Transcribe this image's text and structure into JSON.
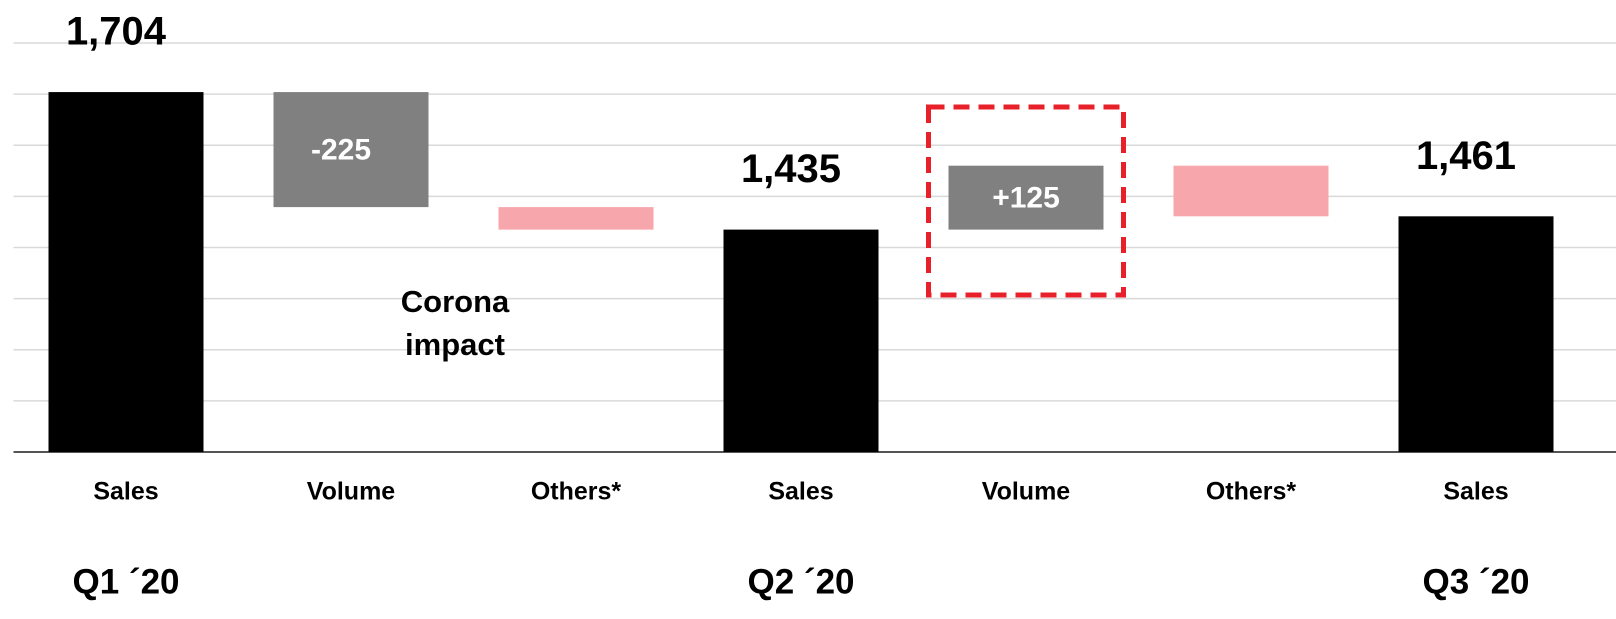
{
  "chart_data": {
    "type": "waterfall",
    "categories": [
      "Sales",
      "Volume",
      "Others*",
      "Sales",
      "Volume",
      "Others*",
      "Sales"
    ],
    "values": [
      1704,
      -225,
      -44,
      1435,
      125,
      -99,
      1461
    ],
    "value_labels": [
      "1,704",
      "-225",
      null,
      "1,435",
      "+125",
      null,
      "1,461"
    ],
    "is_total": [
      true,
      false,
      false,
      true,
      false,
      false,
      true
    ],
    "colors": [
      "#000000",
      "#808080",
      "#f7a6ab",
      "#000000",
      "#808080",
      "#f7a6ab",
      "#000000"
    ],
    "period_labels": [
      "Q1 ´20",
      null,
      null,
      "Q2 ´20",
      null,
      null,
      "Q3 ´20"
    ],
    "annotation": "Corona impact",
    "ylim": [
      1000,
      1800
    ],
    "yticks": [
      1000,
      1100,
      1200,
      1300,
      1400,
      1500,
      1600,
      1700,
      1800
    ],
    "grid": true
  }
}
